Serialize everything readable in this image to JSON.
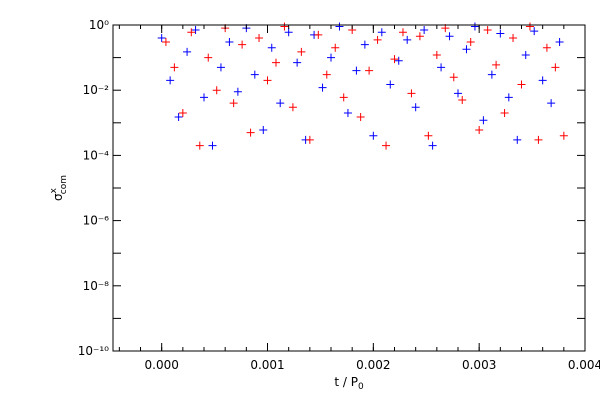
{
  "chart_data": {
    "type": "scatter",
    "x_label": {
      "text": "t / P",
      "subscript": "0"
    },
    "y_label": {
      "symbol": "σ",
      "superscript": "x",
      "subscript": "com"
    },
    "xlim": [
      -0.00046,
      0.004
    ],
    "ylim": [
      1e-10,
      1
    ],
    "log_y": true,
    "marker": "+",
    "xticks": [
      {
        "value": 0,
        "label": "0.000"
      },
      {
        "value": 0.001,
        "label": "0.001"
      },
      {
        "value": 0.002,
        "label": "0.002"
      },
      {
        "value": 0.003,
        "label": "0.003"
      },
      {
        "value": 0.004,
        "label": "0.004"
      }
    ],
    "yticks": [
      {
        "value": 1e-10,
        "label": "10⁻¹⁰"
      },
      {
        "value": 1e-08,
        "label": "10⁻⁸"
      },
      {
        "value": 1e-06,
        "label": "10⁻⁶"
      },
      {
        "value": 0.0001,
        "label": "10⁻⁴"
      },
      {
        "value": 0.01,
        "label": "10⁻²"
      },
      {
        "value": 1,
        "label": "10⁰"
      }
    ],
    "series": [
      {
        "color": "#0000ff",
        "x": [
          0,
          8e-05,
          0.00016,
          0.00024,
          0.00032,
          0.0004,
          0.00048,
          0.00056,
          0.00064,
          0.00072,
          0.0008,
          0.00088,
          0.00096,
          0.00104,
          0.00112,
          0.0012,
          0.00128,
          0.00136,
          0.00144,
          0.00152,
          0.0016,
          0.00168,
          0.00176,
          0.00184,
          0.00192,
          0.002,
          0.00208,
          0.00216,
          0.00224,
          0.00232,
          0.0024,
          0.00248,
          0.00256,
          0.00264,
          0.00272,
          0.0028,
          0.00288,
          0.00296,
          0.00304,
          0.00312,
          0.0032,
          0.00328,
          0.00336,
          0.00344,
          0.00352,
          0.0036,
          0.00368,
          0.00376
        ],
        "values": [
          0.4,
          0.02,
          0.0015,
          0.15,
          0.7,
          0.006,
          0.0002,
          0.05,
          0.3,
          0.009,
          0.8,
          0.03,
          0.0006,
          0.2,
          0.004,
          0.6,
          0.07,
          0.0003,
          0.5,
          0.012,
          0.1,
          0.9,
          0.002,
          0.04,
          0.25,
          0.0004,
          0.6,
          0.015,
          0.08,
          0.35,
          0.003,
          0.7,
          0.0002,
          0.05,
          0.45,
          0.008,
          0.18,
          0.9,
          0.0012,
          0.03,
          0.55,
          0.006,
          0.0003,
          0.12,
          0.65,
          0.02,
          0.004,
          0.3
        ]
      },
      {
        "color": "#ff0000",
        "x": [
          4e-05,
          0.00012,
          0.0002,
          0.00028,
          0.00036,
          0.00044,
          0.00052,
          0.0006,
          0.00068,
          0.00076,
          0.00084,
          0.00092,
          0.001,
          0.00108,
          0.00116,
          0.00124,
          0.00132,
          0.0014,
          0.00148,
          0.00156,
          0.00164,
          0.00172,
          0.0018,
          0.00188,
          0.00196,
          0.00204,
          0.00212,
          0.0022,
          0.00228,
          0.00236,
          0.00244,
          0.00252,
          0.0026,
          0.00268,
          0.00276,
          0.00284,
          0.00292,
          0.003,
          0.00308,
          0.00316,
          0.00324,
          0.00332,
          0.0034,
          0.00348,
          0.00356,
          0.00364,
          0.00372,
          0.0038
        ],
        "values": [
          0.3,
          0.05,
          0.002,
          0.6,
          0.0002,
          0.1,
          0.01,
          0.8,
          0.004,
          0.25,
          0.0005,
          0.4,
          0.02,
          0.07,
          0.9,
          0.003,
          0.15,
          0.0003,
          0.5,
          0.03,
          0.2,
          0.006,
          0.7,
          0.0015,
          0.04,
          0.35,
          0.0002,
          0.09,
          0.6,
          0.008,
          0.45,
          0.0004,
          0.12,
          0.8,
          0.025,
          0.005,
          0.3,
          0.0006,
          0.7,
          0.06,
          0.002,
          0.4,
          0.015,
          0.9,
          0.0003,
          0.2,
          0.05,
          0.0004
        ]
      }
    ]
  }
}
